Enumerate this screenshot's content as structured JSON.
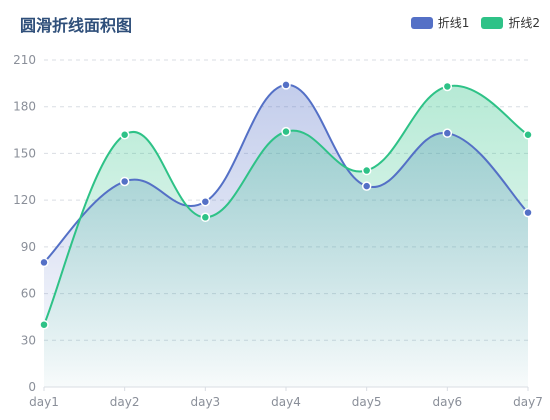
{
  "title": "圆滑折线面积图",
  "legend": {
    "items": [
      {
        "name": "折线1",
        "color": "#5470c6"
      },
      {
        "name": "折线2",
        "color": "#2ec287"
      }
    ]
  },
  "chart_data": {
    "type": "area",
    "smooth": true,
    "categories": [
      "day1",
      "day2",
      "day3",
      "day4",
      "day5",
      "day6",
      "day7"
    ],
    "series": [
      {
        "name": "折线1",
        "values": [
          80,
          132,
          119,
          194,
          129,
          163,
          112
        ],
        "color": "#5470c6"
      },
      {
        "name": "折线2",
        "values": [
          40,
          162,
          109,
          164,
          139,
          193,
          162
        ],
        "color": "#2ec287"
      }
    ],
    "ylim": [
      0,
      210
    ],
    "yticks": [
      0,
      30,
      60,
      90,
      120,
      150,
      180,
      210
    ],
    "grid": true,
    "legend_position": "top-right"
  }
}
